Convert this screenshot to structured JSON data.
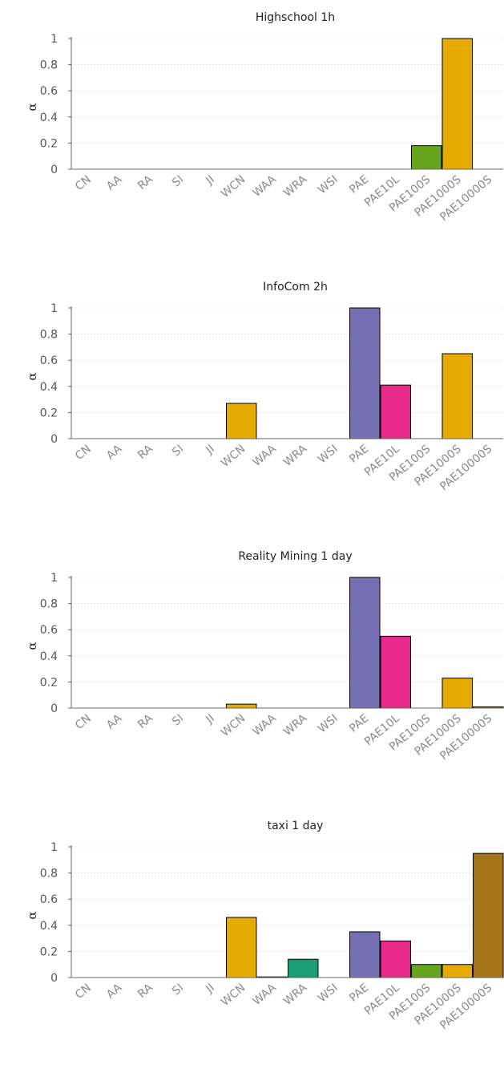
{
  "chart_data": [
    {
      "type": "bar",
      "title": "Highschool 1h",
      "ylabel": "α",
      "xlabel": "",
      "ylim": [
        0,
        1
      ],
      "yticks": [
        "0",
        "0.2",
        "0.4",
        "0.6",
        "0.8",
        "1"
      ],
      "grid": true,
      "categories": [
        "CN",
        "AA",
        "RA",
        "SI",
        "JI",
        "WCN",
        "WAA",
        "WRA",
        "WSI",
        "PAE",
        "PAE10L",
        "PAE100S",
        "PAE1000S",
        "PAE10000S"
      ],
      "values": [
        0,
        0,
        0,
        0,
        0,
        0,
        0,
        0,
        0,
        0,
        0,
        0.18,
        1.0,
        0
      ],
      "colors": [
        "#e6ab02",
        "#e6ab02",
        "#e6ab02",
        "#e6ab02",
        "#e6ab02",
        "#e6ab02",
        "#e6ab02",
        "#1b9e77",
        "#e6ab02",
        "#7570b3",
        "#e7298a",
        "#66a61e",
        "#e6ab02",
        "#a6761d"
      ]
    },
    {
      "type": "bar",
      "title": "InfoCom 2h",
      "ylabel": "α",
      "xlabel": "",
      "ylim": [
        0,
        1
      ],
      "yticks": [
        "0",
        "0.2",
        "0.4",
        "0.6",
        "0.8",
        "1"
      ],
      "grid": true,
      "categories": [
        "CN",
        "AA",
        "RA",
        "SI",
        "JI",
        "WCN",
        "WAA",
        "WRA",
        "WSI",
        "PAE",
        "PAE10L",
        "PAE100S",
        "PAE1000S",
        "PAE10000S"
      ],
      "values": [
        0,
        0,
        0,
        0,
        0,
        0.27,
        0,
        0,
        0,
        1.0,
        0.41,
        0,
        0.65,
        0
      ],
      "colors": [
        "#e6ab02",
        "#e6ab02",
        "#e6ab02",
        "#e6ab02",
        "#e6ab02",
        "#e6ab02",
        "#e6ab02",
        "#1b9e77",
        "#e6ab02",
        "#7570b3",
        "#e7298a",
        "#66a61e",
        "#e6ab02",
        "#a6761d"
      ]
    },
    {
      "type": "bar",
      "title": "Reality Mining 1 day",
      "ylabel": "α",
      "xlabel": "",
      "ylim": [
        0,
        1
      ],
      "yticks": [
        "0",
        "0.2",
        "0.4",
        "0.6",
        "0.8",
        "1"
      ],
      "grid": true,
      "categories": [
        "CN",
        "AA",
        "RA",
        "SI",
        "JI",
        "WCN",
        "WAA",
        "WRA",
        "WSI",
        "PAE",
        "PAE10L",
        "PAE100S",
        "PAE1000S",
        "PAE10000S"
      ],
      "values": [
        0,
        0,
        0,
        0,
        0,
        0.03,
        0,
        0,
        0,
        1.0,
        0.55,
        0,
        0.23,
        0.01
      ],
      "colors": [
        "#e6ab02",
        "#e6ab02",
        "#e6ab02",
        "#e6ab02",
        "#e6ab02",
        "#e6ab02",
        "#e6ab02",
        "#1b9e77",
        "#e6ab02",
        "#7570b3",
        "#e7298a",
        "#66a61e",
        "#e6ab02",
        "#a6761d"
      ]
    },
    {
      "type": "bar",
      "title": "taxi 1 day",
      "ylabel": "α",
      "xlabel": "",
      "ylim": [
        0,
        1
      ],
      "yticks": [
        "0",
        "0.2",
        "0.4",
        "0.6",
        "0.8",
        "1"
      ],
      "grid": true,
      "categories": [
        "CN",
        "AA",
        "RA",
        "SI",
        "JI",
        "WCN",
        "WAA",
        "WRA",
        "WSI",
        "PAE",
        "PAE10L",
        "PAE100S",
        "PAE1000S",
        "PAE10000S"
      ],
      "values": [
        0,
        0,
        0,
        0,
        0,
        0.46,
        0.005,
        0.14,
        0,
        0.35,
        0.28,
        0.1,
        0.1,
        0.95
      ],
      "colors": [
        "#e6ab02",
        "#e6ab02",
        "#e6ab02",
        "#e6ab02",
        "#e6ab02",
        "#e6ab02",
        "#e6ab02",
        "#1b9e77",
        "#e6ab02",
        "#7570b3",
        "#e7298a",
        "#66a61e",
        "#e6ab02",
        "#a6761d"
      ]
    }
  ]
}
